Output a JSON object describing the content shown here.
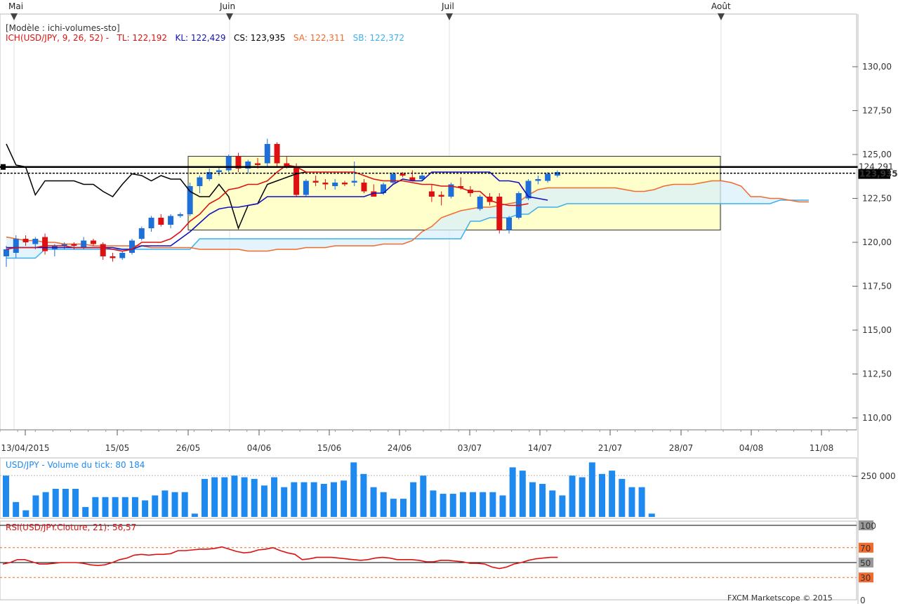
{
  "header": {
    "months": [
      "Mai",
      "Juin",
      "Juil",
      "Août"
    ]
  },
  "main_panel": {
    "model_label": "[Modèle : ichi-volumes-sto]",
    "indicator_label": "ICH(USD/JPY, 9, 26, 52) -",
    "tl_label": "TL: 122,192",
    "kl_label": "KL: 122,429",
    "cs_label": "CS: 123,935",
    "sa_label": "SA: 122,311",
    "sb_label": "SB: 122,372",
    "price_tag_top": "124,291",
    "price_tag_bottom": "123,935"
  },
  "volume_panel": {
    "label": "USD/JPY - Volume du tick: 80 184",
    "axis_label": "250 000"
  },
  "rsi_panel": {
    "label": "RSI(USD/JPY.Cloture, 21): 56,57",
    "levels": [
      "100",
      "70",
      "50",
      "30",
      "0"
    ]
  },
  "footer": {
    "copyright": "FXCM Marketscope © 2015"
  },
  "colors": {
    "up": "#1e6fd8",
    "down": "#dd1111",
    "tenkan": "#dd1111",
    "kijun": "#1111bb",
    "chikou": "#000000",
    "senkou_a": "#f26a2c",
    "senkou_b": "#3bb0ef",
    "cloud": "#d9f0fb",
    "rectangle": "#ffffcc",
    "volume": "#1e8af0",
    "rsi": "#dd1111"
  },
  "chart_data": [
    {
      "type": "candlestick",
      "title": "USD/JPY",
      "x_ticks": [
        "13/04/2015",
        "15/05",
        "26/05",
        "04/06",
        "15/06",
        "24/06",
        "03/07",
        "14/07",
        "21/07",
        "28/07",
        "04/08",
        "11/08"
      ],
      "y_ticks": [
        "130,00",
        "127,50",
        "125,00",
        "122,50",
        "120,00",
        "117,50",
        "115,00",
        "112,50",
        "110,00"
      ],
      "ylim": [
        109.0,
        133.0
      ],
      "candles": [
        {
          "o": 119.2,
          "h": 119.8,
          "l": 118.6,
          "c": 119.6
        },
        {
          "o": 119.4,
          "h": 120.4,
          "l": 119.1,
          "c": 120.2
        },
        {
          "o": 120.2,
          "h": 120.4,
          "l": 119.8,
          "c": 120.0
        },
        {
          "o": 119.9,
          "h": 120.3,
          "l": 119.6,
          "c": 120.2
        },
        {
          "o": 120.3,
          "h": 120.5,
          "l": 119.3,
          "c": 119.5
        },
        {
          "o": 119.6,
          "h": 119.9,
          "l": 119.2,
          "c": 119.8
        },
        {
          "o": 119.8,
          "h": 120.0,
          "l": 119.6,
          "c": 119.9
        },
        {
          "o": 119.9,
          "h": 120.0,
          "l": 119.6,
          "c": 119.8
        },
        {
          "o": 119.7,
          "h": 120.3,
          "l": 119.6,
          "c": 120.1
        },
        {
          "o": 120.1,
          "h": 120.2,
          "l": 119.8,
          "c": 119.9
        },
        {
          "o": 119.9,
          "h": 120.0,
          "l": 119.0,
          "c": 119.2
        },
        {
          "o": 119.2,
          "h": 119.4,
          "l": 118.9,
          "c": 119.1
        },
        {
          "o": 119.1,
          "h": 119.5,
          "l": 119.0,
          "c": 119.4
        },
        {
          "o": 119.4,
          "h": 120.2,
          "l": 119.3,
          "c": 120.1
        },
        {
          "o": 120.2,
          "h": 120.9,
          "l": 120.1,
          "c": 120.8
        },
        {
          "o": 120.8,
          "h": 121.5,
          "l": 120.6,
          "c": 121.4
        },
        {
          "o": 121.4,
          "h": 121.6,
          "l": 120.9,
          "c": 121.0
        },
        {
          "o": 121.0,
          "h": 121.6,
          "l": 120.8,
          "c": 121.5
        },
        {
          "o": 121.5,
          "h": 121.7,
          "l": 121.4,
          "c": 121.6
        },
        {
          "o": 121.6,
          "h": 123.4,
          "l": 121.5,
          "c": 123.2
        },
        {
          "o": 123.2,
          "h": 123.8,
          "l": 122.8,
          "c": 123.7
        },
        {
          "o": 123.6,
          "h": 124.2,
          "l": 123.5,
          "c": 124.0
        },
        {
          "o": 124.0,
          "h": 124.3,
          "l": 123.8,
          "c": 124.1
        },
        {
          "o": 124.1,
          "h": 125.0,
          "l": 124.0,
          "c": 124.9
        },
        {
          "o": 124.9,
          "h": 125.1,
          "l": 124.0,
          "c": 124.2
        },
        {
          "o": 124.2,
          "h": 124.7,
          "l": 123.9,
          "c": 124.6
        },
        {
          "o": 124.5,
          "h": 124.8,
          "l": 124.2,
          "c": 124.4
        },
        {
          "o": 124.5,
          "h": 125.9,
          "l": 124.3,
          "c": 125.6
        },
        {
          "o": 125.6,
          "h": 125.7,
          "l": 124.3,
          "c": 124.5
        },
        {
          "o": 124.5,
          "h": 124.9,
          "l": 124.2,
          "c": 124.3
        },
        {
          "o": 124.3,
          "h": 124.5,
          "l": 122.6,
          "c": 122.7
        },
        {
          "o": 122.7,
          "h": 123.6,
          "l": 122.6,
          "c": 123.5
        },
        {
          "o": 123.5,
          "h": 123.8,
          "l": 123.2,
          "c": 123.4
        },
        {
          "o": 123.4,
          "h": 123.6,
          "l": 123.0,
          "c": 123.3
        },
        {
          "o": 123.2,
          "h": 123.6,
          "l": 123.0,
          "c": 123.4
        },
        {
          "o": 123.4,
          "h": 123.5,
          "l": 123.2,
          "c": 123.3
        },
        {
          "o": 123.4,
          "h": 124.6,
          "l": 123.2,
          "c": 123.5
        },
        {
          "o": 123.4,
          "h": 123.6,
          "l": 122.8,
          "c": 122.9
        },
        {
          "o": 122.9,
          "h": 123.3,
          "l": 122.6,
          "c": 122.6
        },
        {
          "o": 122.8,
          "h": 123.4,
          "l": 122.7,
          "c": 123.3
        },
        {
          "o": 123.4,
          "h": 124.0,
          "l": 123.3,
          "c": 123.9
        },
        {
          "o": 123.9,
          "h": 124.0,
          "l": 123.7,
          "c": 123.8
        },
        {
          "o": 123.7,
          "h": 124.1,
          "l": 123.5,
          "c": 123.5
        },
        {
          "o": 123.6,
          "h": 123.9,
          "l": 123.5,
          "c": 123.8
        },
        {
          "o": 122.9,
          "h": 123.3,
          "l": 122.3,
          "c": 122.6
        },
        {
          "o": 122.7,
          "h": 122.9,
          "l": 122.1,
          "c": 122.6
        },
        {
          "o": 122.6,
          "h": 123.4,
          "l": 122.5,
          "c": 123.3
        },
        {
          "o": 123.2,
          "h": 123.7,
          "l": 123.0,
          "c": 123.1
        },
        {
          "o": 123.0,
          "h": 123.2,
          "l": 122.6,
          "c": 122.8
        },
        {
          "o": 121.9,
          "h": 122.7,
          "l": 121.8,
          "c": 122.6
        },
        {
          "o": 122.6,
          "h": 122.8,
          "l": 122.1,
          "c": 122.3
        },
        {
          "o": 122.6,
          "h": 122.8,
          "l": 120.5,
          "c": 120.7
        },
        {
          "o": 120.7,
          "h": 121.5,
          "l": 120.5,
          "c": 121.4
        },
        {
          "o": 121.4,
          "h": 122.9,
          "l": 121.3,
          "c": 122.8
        },
        {
          "o": 122.5,
          "h": 123.6,
          "l": 122.4,
          "c": 123.5
        },
        {
          "o": 123.5,
          "h": 123.8,
          "l": 123.3,
          "c": 123.6
        },
        {
          "o": 123.5,
          "h": 124.0,
          "l": 123.4,
          "c": 123.9
        },
        {
          "o": 123.8,
          "h": 124.1,
          "l": 123.7,
          "c": 124.0
        }
      ],
      "tenkan": [
        119.6,
        119.7,
        119.7,
        119.7,
        119.8,
        119.8,
        119.8,
        119.7,
        119.7,
        119.7,
        119.7,
        119.6,
        119.5,
        119.6,
        120.0,
        120.0,
        120.0,
        120.2,
        120.6,
        121.2,
        121.6,
        122.2,
        122.5,
        123.0,
        123.1,
        123.3,
        123.3,
        123.5,
        124.0,
        124.4,
        124.3,
        124.0,
        124.0,
        124.0,
        124.0,
        124.0,
        124.0,
        123.8,
        123.6,
        123.5,
        123.5,
        123.5,
        123.4,
        123.3,
        123.3,
        123.2,
        123.2,
        123.1,
        122.9,
        122.9,
        122.4,
        122.2,
        122.1,
        122.1,
        122.2
      ],
      "kijun": [
        119.7,
        119.7,
        119.7,
        119.7,
        119.7,
        119.7,
        119.7,
        119.7,
        119.7,
        119.7,
        119.7,
        119.7,
        119.6,
        119.6,
        119.8,
        119.8,
        119.8,
        119.8,
        120.2,
        120.6,
        121.1,
        121.6,
        121.9,
        122.0,
        122.0,
        122.1,
        122.2,
        122.6,
        122.6,
        122.6,
        122.6,
        122.6,
        122.6,
        122.6,
        122.6,
        122.6,
        122.6,
        122.6,
        122.8,
        122.8,
        123.3,
        123.6,
        123.5,
        123.5,
        124.0,
        124.0,
        124.0,
        124.0,
        124.0,
        124.0,
        124.0,
        123.5,
        123.5,
        123.4,
        122.6,
        122.5,
        122.4
      ],
      "chikou": [
        125.6,
        124.4,
        124.3,
        122.7,
        123.5,
        123.5,
        123.5,
        123.5,
        123.3,
        123.3,
        122.9,
        122.6,
        123.3,
        123.9,
        123.8,
        123.5,
        123.8,
        123.6,
        123.6,
        122.9,
        122.6,
        122.6,
        123.3,
        122.6,
        120.8,
        122.1,
        122.2,
        123.3,
        123.5,
        123.7,
        123.9,
        124.0
      ],
      "senkou_a": [
        120.3,
        120.2,
        120.1,
        120.1,
        120.0,
        120.0,
        119.9,
        119.9,
        119.9,
        119.8,
        119.8,
        119.8,
        119.8,
        119.8,
        119.8,
        119.7,
        119.7,
        119.7,
        119.7,
        119.7,
        119.6,
        119.6,
        119.6,
        119.6,
        119.6,
        119.5,
        119.5,
        119.5,
        119.6,
        119.6,
        119.6,
        119.7,
        119.7,
        119.7,
        119.8,
        119.8,
        119.8,
        119.8,
        119.8,
        119.9,
        119.9,
        119.9,
        120.1,
        120.6,
        120.9,
        121.4,
        121.6,
        121.8,
        121.9,
        122.0,
        122.0,
        122.1,
        122.2,
        122.3,
        122.7,
        123.0,
        123.1,
        123.1,
        123.1,
        123.1,
        123.1,
        123.1,
        123.1,
        123.1,
        123.0,
        122.9,
        122.9,
        123.0,
        123.2,
        123.3,
        123.3,
        123.3,
        123.4,
        123.5,
        123.5,
        123.4,
        123.2,
        122.6,
        122.6,
        122.5,
        122.5,
        122.4,
        122.3,
        122.3
      ],
      "senkou_b": [
        119.1,
        119.1,
        119.1,
        119.1,
        119.6,
        119.6,
        119.6,
        119.6,
        119.6,
        119.6,
        119.6,
        119.6,
        119.6,
        119.6,
        119.6,
        119.6,
        119.6,
        119.6,
        119.6,
        119.6,
        120.2,
        120.2,
        120.2,
        120.2,
        120.2,
        120.2,
        120.2,
        120.2,
        120.2,
        120.2,
        120.2,
        120.2,
        120.2,
        120.2,
        120.2,
        120.2,
        120.2,
        120.2,
        120.2,
        120.2,
        120.2,
        120.2,
        120.2,
        120.2,
        120.2,
        120.2,
        120.2,
        120.2,
        121.2,
        121.2,
        121.4,
        121.4,
        121.4,
        121.6,
        121.6,
        122.0,
        122.0,
        122.0,
        122.2,
        122.2,
        122.2,
        122.2,
        122.2,
        122.2,
        122.2,
        122.2,
        122.2,
        122.2,
        122.2,
        122.2,
        122.2,
        122.2,
        122.2,
        122.2,
        122.2,
        122.2,
        122.2,
        122.2,
        122.2,
        122.2,
        122.4,
        122.4,
        122.4,
        122.4
      ],
      "levels": [
        124.291,
        123.935
      ],
      "highlight_range": [
        120.7,
        124.9
      ]
    },
    {
      "type": "bar",
      "title": "USD/JPY - Volume du tick",
      "y_ticks": [
        "250 000"
      ],
      "ylim": [
        0,
        340000
      ],
      "values": [
        250000,
        90000,
        40000,
        130000,
        150000,
        170000,
        170000,
        170000,
        60000,
        120000,
        120000,
        120000,
        120000,
        120000,
        100000,
        130000,
        160000,
        150000,
        150000,
        20000,
        230000,
        240000,
        240000,
        250000,
        240000,
        230000,
        190000,
        240000,
        180000,
        210000,
        210000,
        210000,
        200000,
        210000,
        220000,
        330000,
        260000,
        180000,
        150000,
        110000,
        110000,
        210000,
        250000,
        160000,
        140000,
        140000,
        150000,
        150000,
        150000,
        150000,
        130000,
        300000,
        280000,
        210000,
        200000,
        160000,
        130000,
        250000,
        240000,
        330000,
        260000,
        280000,
        230000,
        180000,
        180000,
        20000
      ]
    },
    {
      "type": "line",
      "title": "RSI(USD/JPY.Cloture, 21)",
      "y_ticks": [
        "100",
        "70",
        "50",
        "30",
        "0"
      ],
      "ylim": [
        0,
        100
      ],
      "values": [
        48,
        50,
        54,
        54,
        51,
        48,
        48,
        49,
        50,
        50,
        50,
        49,
        47,
        46,
        47,
        50,
        54,
        56,
        60,
        61,
        60,
        61,
        61,
        62,
        66,
        66,
        67,
        68,
        68,
        69,
        71,
        68,
        65,
        63,
        64,
        67,
        68,
        70,
        66,
        63,
        61,
        54,
        55,
        57,
        57,
        57,
        56,
        55,
        54,
        53,
        54,
        56,
        57,
        56,
        54,
        54,
        54,
        53,
        51,
        51,
        53,
        53,
        52,
        51,
        49,
        49,
        48,
        44,
        42,
        44,
        48,
        50,
        53,
        55,
        56,
        57,
        57
      ]
    }
  ]
}
